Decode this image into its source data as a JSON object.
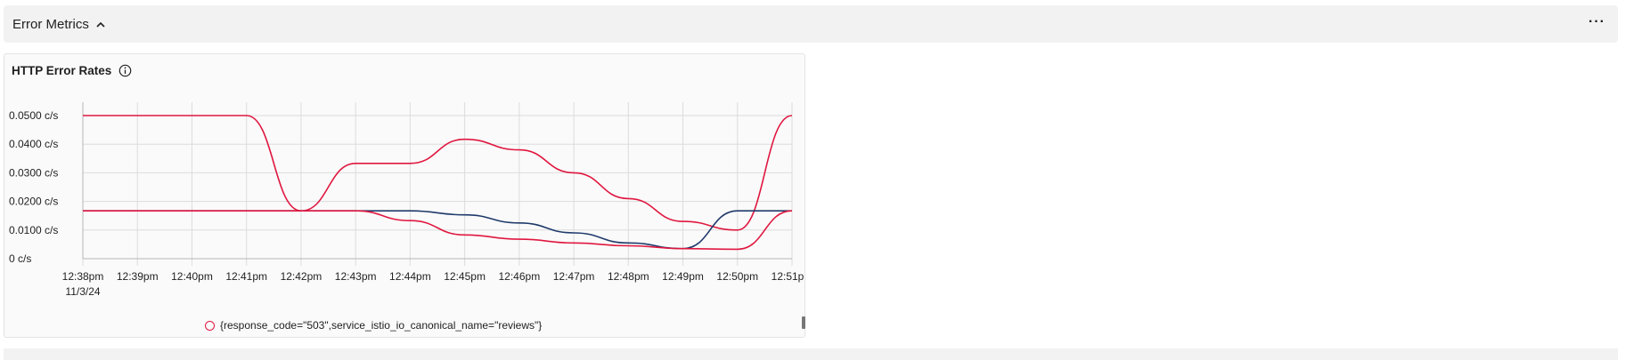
{
  "section": {
    "title": "Error Metrics",
    "menu_label": "···"
  },
  "panel": {
    "title": "HTTP Error Rates"
  },
  "icons": {
    "collapse": "chevron-up-icon",
    "info": "info-icon",
    "menu": "more-options-icon"
  },
  "colors": {
    "series_red": "#e0173f",
    "series_navy": "#1f3a6b",
    "grid": "#dcdcdc"
  },
  "chart_data": {
    "type": "line",
    "title": "HTTP Error Rates",
    "x_tick_labels": [
      "12:38pm",
      "12:39pm",
      "12:40pm",
      "12:41pm",
      "12:42pm",
      "12:43pm",
      "12:44pm",
      "12:45pm",
      "12:46pm",
      "12:47pm",
      "12:48pm",
      "12:49pm",
      "12:50pm",
      "12:51pm"
    ],
    "x_date_label": "11/3/24",
    "y_tick_labels": [
      "0 c/s",
      "0.0100 c/s",
      "0.0200 c/s",
      "0.0300 c/s",
      "0.0400 c/s",
      "0.0500 c/s"
    ],
    "y_unit": "c/s",
    "ylim": [
      0,
      0.05
    ],
    "grid": true,
    "legend_position": "bottom",
    "legend": [
      "{response_code=\"503\",service_istio_io_canonical_name=\"reviews\"}"
    ],
    "series": [
      {
        "color": "#e0173f",
        "points": [
          [
            "12:38pm",
            0.05
          ],
          [
            "12:41pm",
            0.05
          ],
          [
            "12:42pm",
            0.0167
          ],
          [
            "12:43pm",
            0.0333
          ],
          [
            "12:44pm",
            0.0333
          ],
          [
            "12:45pm",
            0.0417
          ],
          [
            "12:46pm",
            0.038
          ],
          [
            "12:47pm",
            0.03
          ],
          [
            "12:48pm",
            0.021
          ],
          [
            "12:49pm",
            0.013
          ],
          [
            "12:50pm",
            0.01
          ],
          [
            "12:51pm",
            0.05
          ]
        ]
      },
      {
        "color": "#1f3a6b",
        "points": [
          [
            "12:38pm",
            0.0167
          ],
          [
            "12:43pm",
            0.0167
          ],
          [
            "12:44pm",
            0.0167
          ],
          [
            "12:45pm",
            0.0153
          ],
          [
            "12:46pm",
            0.0125
          ],
          [
            "12:47pm",
            0.009
          ],
          [
            "12:48pm",
            0.0055
          ],
          [
            "12:49pm",
            0.0035
          ],
          [
            "12:50pm",
            0.0167
          ],
          [
            "12:51pm",
            0.0167
          ]
        ]
      },
      {
        "color": "#e0173f",
        "points": [
          [
            "12:38pm",
            0.0167
          ],
          [
            "12:43pm",
            0.0167
          ],
          [
            "12:44pm",
            0.0133
          ],
          [
            "12:45pm",
            0.0083
          ],
          [
            "12:46pm",
            0.0068
          ],
          [
            "12:47pm",
            0.0055
          ],
          [
            "12:48pm",
            0.0045
          ],
          [
            "12:49pm",
            0.0035
          ],
          [
            "12:50pm",
            0.0033
          ],
          [
            "12:51pm",
            0.0167
          ]
        ]
      }
    ]
  }
}
